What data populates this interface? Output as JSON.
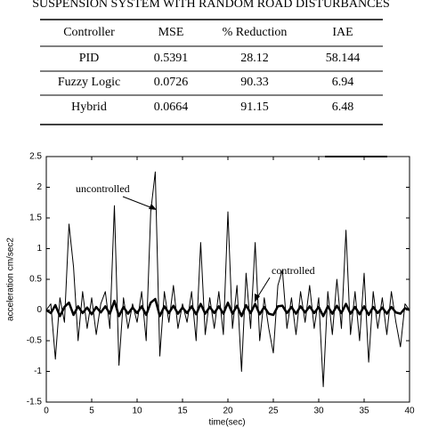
{
  "header": {
    "title": "SUSPENSION SYSTEM WITH RANDOM ROAD DISTURBANCES"
  },
  "table": {
    "columns": [
      "Controller",
      "MSE",
      "% Reduction",
      "IAE"
    ],
    "rows": [
      [
        "PID",
        "0.5391",
        "28.12",
        "58.144"
      ],
      [
        "Fuzzy Logic",
        "0.0726",
        "90.33",
        "6.94"
      ],
      [
        "Hybrid",
        "0.0664",
        "91.15",
        "6.48"
      ]
    ]
  },
  "chart_data": {
    "type": "line",
    "xlabel": "time(sec)",
    "ylabel": "acceleration cm/sec2",
    "annotations": [
      "uncontrolled",
      "controlled"
    ],
    "x": [
      0,
      0.5,
      1,
      1.5,
      2,
      2.5,
      3,
      3.5,
      4,
      4.5,
      5,
      5.5,
      6,
      6.5,
      7,
      7.5,
      8,
      8.5,
      9,
      9.5,
      10,
      10.5,
      11,
      11.5,
      12,
      12.5,
      13,
      13.5,
      14,
      14.5,
      15,
      15.5,
      16,
      16.5,
      17,
      17.5,
      18,
      18.5,
      19,
      19.5,
      20,
      20.5,
      21,
      21.5,
      22,
      22.5,
      23,
      23.5,
      24,
      24.5,
      25,
      25.5,
      26,
      26.5,
      27,
      27.5,
      28,
      28.5,
      29,
      29.5,
      30,
      30.5,
      31,
      31.5,
      32,
      32.5,
      33,
      33.5,
      34,
      34.5,
      35,
      35.5,
      36,
      36.5,
      37,
      37.5,
      38,
      38.5,
      39,
      39.5,
      40
    ],
    "series": [
      {
        "name": "uncontrolled",
        "color": "#000000",
        "width": 1,
        "values": [
          0,
          0.1,
          -0.8,
          0.2,
          -0.2,
          1.4,
          0.7,
          -0.5,
          0.3,
          -0.3,
          0.2,
          -0.4,
          0.1,
          0.3,
          -0.3,
          1.7,
          -0.9,
          0.2,
          -0.3,
          0.1,
          -0.2,
          0.3,
          -0.5,
          1.6,
          2.25,
          -0.75,
          0.3,
          -0.2,
          0.4,
          -0.3,
          0.1,
          -0.2,
          0.3,
          -0.5,
          1.1,
          -0.4,
          0.2,
          -0.3,
          0.3,
          -0.4,
          1.6,
          -0.3,
          0.4,
          -1.0,
          0.6,
          -0.3,
          1.1,
          -0.5,
          0.2,
          -0.3,
          -0.7,
          0.4,
          0.65,
          -0.3,
          0.2,
          -0.4,
          0.3,
          -0.2,
          0.4,
          -0.3,
          0.2,
          -1.25,
          0.3,
          -0.4,
          0.5,
          -0.3,
          1.3,
          -0.4,
          0.3,
          -0.5,
          0.6,
          -0.85,
          0.3,
          -0.3,
          0.2,
          -0.4,
          0.3,
          -0.2,
          -0.6,
          0.1,
          0
        ]
      },
      {
        "name": "controlled",
        "color": "#000000",
        "width": 2.5,
        "values": [
          0,
          -0.05,
          0.08,
          -0.1,
          0.05,
          0.12,
          -0.08,
          0.06,
          -0.05,
          0.04,
          -0.07,
          0.05,
          -0.04,
          0.06,
          -0.06,
          0.15,
          -0.1,
          0.05,
          -0.06,
          0.04,
          -0.05,
          0.06,
          -0.08,
          0.12,
          0.18,
          -0.1,
          0.06,
          -0.05,
          0.07,
          -0.06,
          0.04,
          -0.05,
          0.06,
          -0.07,
          0.1,
          -0.06,
          0.05,
          -0.05,
          0.06,
          -0.06,
          0.12,
          -0.06,
          0.07,
          -0.1,
          0.08,
          -0.05,
          0.1,
          -0.07,
          0.05,
          -0.06,
          -0.08,
          0.06,
          0.07,
          -0.05,
          0.05,
          -0.06,
          0.06,
          -0.04,
          0.06,
          -0.05,
          0.05,
          -0.1,
          0.06,
          -0.06,
          0.07,
          -0.05,
          0.1,
          -0.06,
          0.05,
          -0.07,
          0.06,
          -0.08,
          0.05,
          -0.05,
          0.04,
          -0.06,
          0.05,
          -0.04,
          -0.06,
          0.03,
          0
        ]
      }
    ],
    "xlim": [
      0,
      40
    ],
    "xticks": [
      0,
      5,
      10,
      15,
      20,
      25,
      30,
      35,
      40
    ],
    "ylim": [
      -1.5,
      2.5
    ],
    "yticks": [
      -1.5,
      -1,
      -0.5,
      0,
      0.5,
      1,
      1.5,
      2,
      2.5
    ]
  }
}
